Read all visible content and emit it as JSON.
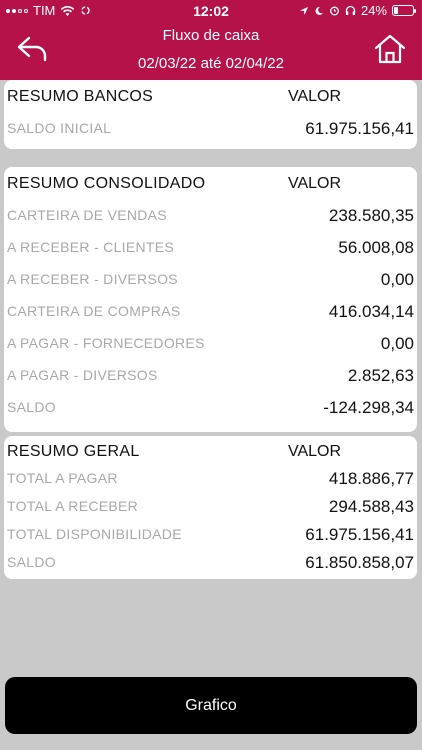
{
  "status": {
    "carrier": "TIM",
    "time": "12:02",
    "battery": "24%",
    "battery_level": 0.24
  },
  "header": {
    "title": "Fluxo de caixa",
    "subtitle": "02/03/22 até 02/04/22"
  },
  "bancos": {
    "heading": "RESUMO BANCOS",
    "col": "VALOR",
    "rows": [
      {
        "label": "SALDO INICIAL",
        "value": "61.975.156,41"
      }
    ]
  },
  "consolidado": {
    "heading": "RESUMO CONSOLIDADO",
    "col": "VALOR",
    "rows": [
      {
        "label": "CARTEIRA DE VENDAS",
        "value": "238.580,35"
      },
      {
        "label": "A RECEBER - CLIENTES",
        "value": "56.008,08"
      },
      {
        "label": "A RECEBER - DIVERSOS",
        "value": "0,00"
      },
      {
        "label": "CARTEIRA DE COMPRAS",
        "value": "416.034,14"
      },
      {
        "label": "A PAGAR - FORNECEDORES",
        "value": "0,00"
      },
      {
        "label": "A PAGAR - DIVERSOS",
        "value": "2.852,63"
      },
      {
        "label": "SALDO",
        "value": "-124.298,34"
      }
    ]
  },
  "geral": {
    "heading": "RESUMO GERAL",
    "col": "VALOR",
    "rows": [
      {
        "label": "TOTAL A PAGAR",
        "value": "418.886,77"
      },
      {
        "label": "TOTAL A RECEBER",
        "value": "294.588,43"
      },
      {
        "label": "TOTAL DISPONIBILIDADE",
        "value": "61.975.156,41"
      },
      {
        "label": "SALDO",
        "value": "61.850.858,07"
      }
    ]
  },
  "footer": {
    "button_label": "Grafico"
  }
}
